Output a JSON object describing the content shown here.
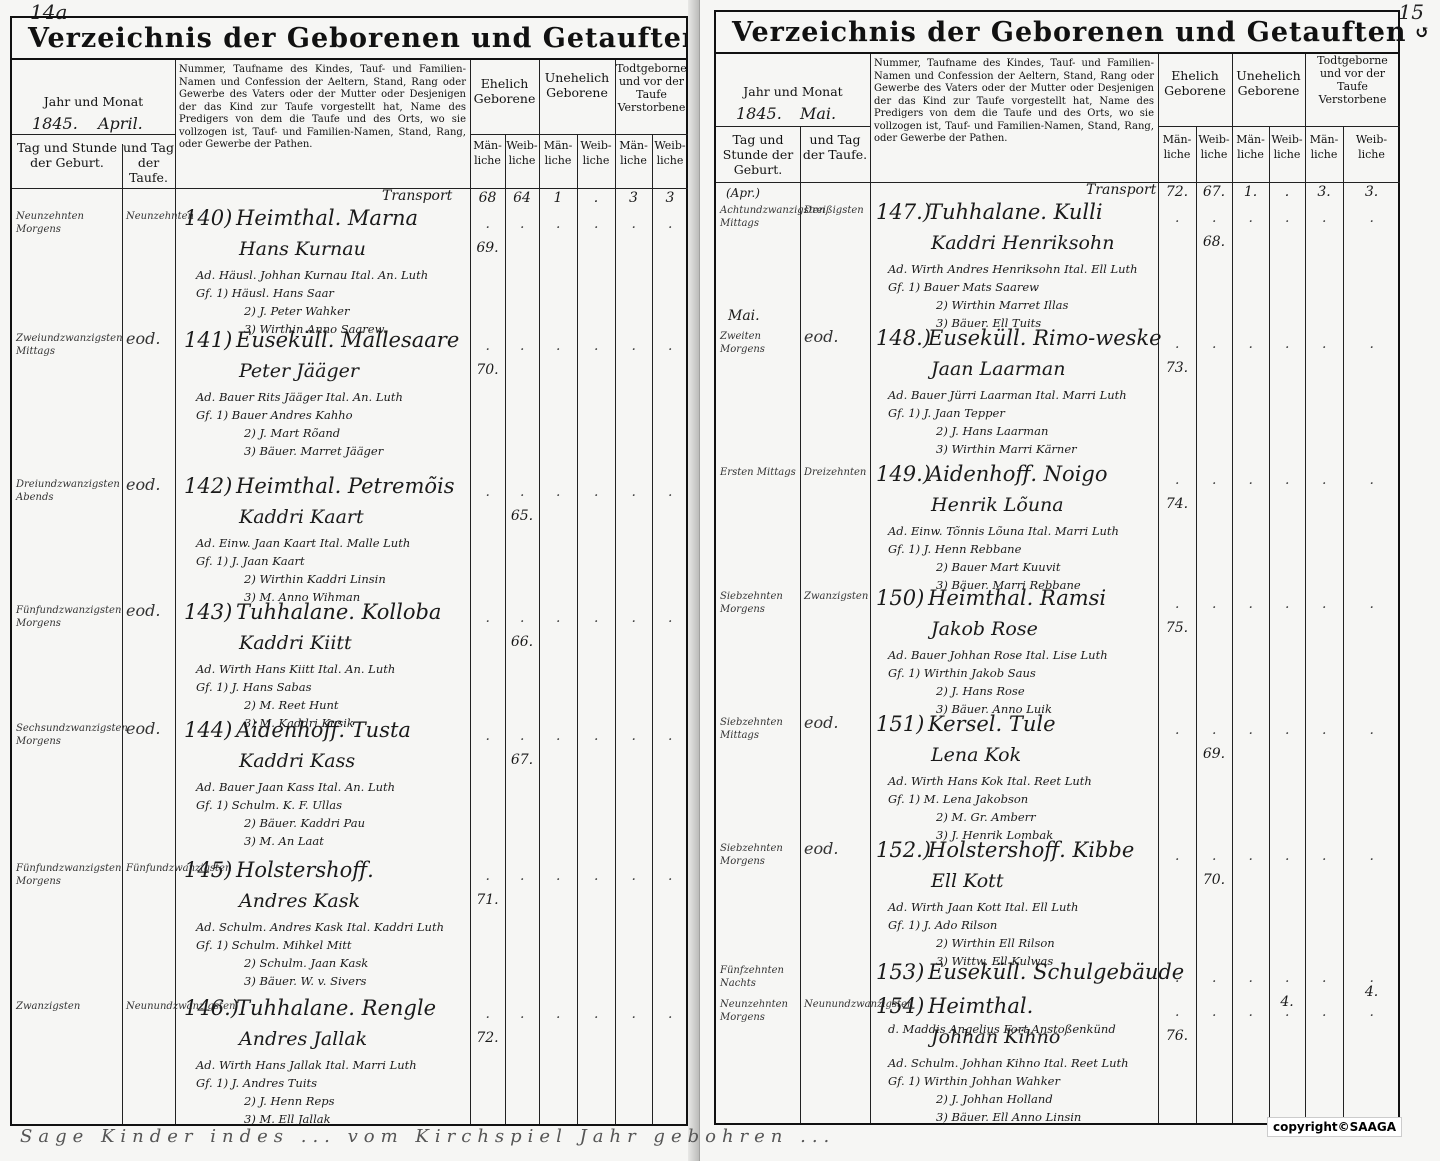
{
  "corner_left": "14a",
  "corner_right": "15",
  "left": {
    "title": "Verzeichnis der Geborenen und Getauften",
    "headers": {
      "year_month": "Jahr und Monat",
      "year_value": "1845.",
      "month_value": "April.",
      "birth_day": "Tag und Stunde der Geburt.",
      "baptism_day": "und Tag der Taufe.",
      "description": "Nummer, Taufname des Kindes, Tauf- und Familien-Namen und Confession der Aeltern, Stand, Rang oder Gewerbe des Vaters oder der Mutter oder Desjenigen der das Kind zur Taufe vorgestellt hat, Name des Predigers von dem die Taufe und des Orts, wo sie vollzogen ist, Tauf- und Familien-Namen, Stand, Rang, oder Gewerbe der Pathen.",
      "legit": "Ehelich Geborene",
      "illegit": "Unehelich Geborene",
      "stillborn": "Todtgeborne und vor der Taufe Verstorbene",
      "male": "Män- liche",
      "female": "Weib- liche"
    },
    "transport": "Transport",
    "transport_values": [
      "68",
      "64",
      "1",
      ".",
      "3",
      "3"
    ],
    "entries": [
      {
        "no": "140)",
        "place": "Heimthal. Marna",
        "child": "Hans Kurnau",
        "father": "Ad. Häusl. Johhan Kurnau Ital. An. Luth",
        "godparents": [
          "Gf. 1) Häusl. Hans Saar",
          "2) J. Peter Wahker",
          "3) Wirthin Anno Saarew."
        ],
        "birth": "Neunzehnten Morgens",
        "baptism": "Neunzehnten",
        "m": "69.",
        "f": "",
        "um": "",
        "uf": ""
      },
      {
        "no": "141)",
        "place": "Euseküll. Mallesaare",
        "child": "Peter Jääger",
        "father": "Ad. Bauer Rits Jääger Ital. An. Luth",
        "godparents": [
          "Gf. 1) Bauer Andres Kahho",
          "2) J. Mart Rõand",
          "3) Bäuer. Marret Jääger"
        ],
        "birth": "Zweiundzwanzigsten Mittags",
        "baptism": "eod.",
        "m": "70.",
        "f": "",
        "um": "",
        "uf": ""
      },
      {
        "no": "142)",
        "place": "Heimthal. Petremõis",
        "child": "Kaddri Kaart",
        "father": "Ad. Einw. Jaan Kaart Ital. Malle Luth",
        "godparents": [
          "Gf. 1) J. Jaan Kaart",
          "2) Wirthin Kaddri Linsin",
          "3) M. Anno Wihman"
        ],
        "birth": "Dreiundzwanzigsten Abends",
        "baptism": "eod.",
        "m": "",
        "f": "65.",
        "um": "",
        "uf": ""
      },
      {
        "no": "143)",
        "place": "Tuhhalane. Kolloba",
        "child": "Kaddri Kiitt",
        "father": "Ad. Wirth Hans Kiitt Ital. An. Luth",
        "godparents": [
          "Gf. 1) J. Hans Sabas",
          "2) M. Reet Hunt",
          "3) M. Kaddri Kusik"
        ],
        "birth": "Fünfundzwanzigsten Morgens",
        "baptism": "eod.",
        "m": "",
        "f": "66.",
        "um": "",
        "uf": ""
      },
      {
        "no": "144)",
        "place": "Aidenhoff. Tusta",
        "child": "Kaddri Kass",
        "father": "Ad. Bauer Jaan Kass Ital. An. Luth",
        "godparents": [
          "Gf. 1) Schulm. K. F. Ullas",
          "2) Bäuer. Kaddri Pau",
          "3) M. An Laat"
        ],
        "birth": "Sechsundzwanzigsten Morgens",
        "baptism": "eod.",
        "m": "",
        "f": "67.",
        "um": "",
        "uf": ""
      },
      {
        "no": "145)",
        "place": "Holstershoff.",
        "child": "Andres Kask",
        "father": "Ad. Schulm. Andres Kask Ital. Kaddri Luth",
        "godparents": [
          "Gf. 1) Schulm. Mihkel Mitt",
          "2) Schulm. Jaan Kask",
          "3) Bäuer. W. v. Sivers"
        ],
        "birth": "Fünfundzwanzigsten Morgens",
        "baptism": "Fünfundzwanzigsten",
        "m": "71.",
        "f": "",
        "um": "",
        "uf": ""
      },
      {
        "no": "146.)",
        "place": "Tuhhalane. Rengle",
        "child": "Andres Jallak",
        "father": "Ad. Wirth Hans Jallak Ital. Marri Luth",
        "godparents": [
          "Gf. 1) J. Andres Tuits",
          "2) J. Henn Reps",
          "3) M. Ell Jallak"
        ],
        "birth": "Zwanzigsten",
        "baptism": "Neunundzwanzigsten",
        "m": "72.",
        "f": "",
        "um": "",
        "uf": ""
      }
    ]
  },
  "right": {
    "title": "Verzeichnis der Geborenen und Getauften",
    "headers": {
      "year_month": "Jahr und Monat",
      "year_value": "1845.",
      "month_value": "Mai.",
      "birth_day": "Tag und Stunde der Geburt.",
      "baptism_day": "und Tag der Taufe.",
      "description": "Nummer, Taufname des Kindes, Tauf- und Familien-Namen und Confession der Aeltern, Stand, Rang oder Gewerbe des Vaters oder der Mutter oder Desjenigen der das Kind zur Taufe vorgestellt hat, Name des Predigers von dem die Taufe und des Orts, wo sie vollzogen ist, Tauf- und Familien-Namen, Stand, Rang, oder Gewerbe der Pathen.",
      "legit": "Ehelich Geborene",
      "illegit": "Unehelich Geborene",
      "stillborn": "Todtgeborne und vor der Taufe Verstorbene",
      "male": "Män- liche",
      "female": "Weib- liche"
    },
    "transport": "Transport",
    "transport_values": [
      "72.",
      "67.",
      "1.",
      ".",
      "3.",
      "3."
    ],
    "april_note": "(Apr.)",
    "may_note": "Mai.",
    "entries": [
      {
        "no": "147.)",
        "place": "Tuhhalane. Kulli",
        "child": "Kaddri Henriksohn",
        "father": "Ad. Wirth Andres Henriksohn Ital. Ell Luth",
        "godparents": [
          "Gf. 1) Bauer Mats Saarew",
          "2) Wirthin Marret Illas",
          "3) Bäuer. Ell Tuits"
        ],
        "birth": "Achtundzwanzigsten Mittags",
        "baptism": "Dreißigsten",
        "m": "",
        "f": "68.",
        "um": "",
        "uf": ""
      },
      {
        "no": "148.)",
        "place": "Euseküll. Rimo-weske",
        "child": "Jaan Laarman",
        "father": "Ad. Bauer Jürri Laarman Ital. Marri Luth",
        "godparents": [
          "Gf. 1) J. Jaan Tepper",
          "2) J. Hans Laarman",
          "3) Wirthin Marri Kärner"
        ],
        "birth": "Zweiten Morgens",
        "baptism": "eod.",
        "m": "73.",
        "f": "",
        "um": "",
        "uf": ""
      },
      {
        "no": "149.)",
        "place": "Aidenhoff. Noigo",
        "child": "Henrik Lõuna",
        "father": "Ad. Einw. Tõnnis Lõuna Ital. Marri Luth",
        "godparents": [
          "Gf. 1) J. Henn Rebbane",
          "2) Bauer Mart Kuuvit",
          "3) Bäuer. Marri Rebbane"
        ],
        "birth": "Ersten Mittags",
        "baptism": "Dreizehnten",
        "m": "74.",
        "f": "",
        "um": "",
        "uf": ""
      },
      {
        "no": "150)",
        "place": "Heimthal. Ramsi",
        "child": "Jakob Rose",
        "father": "Ad. Bauer Johhan Rose Ital. Lise Luth",
        "godparents": [
          "Gf. 1) Wirthin Jakob Saus",
          "2) J. Hans Rose",
          "3) Bäuer. Anno Luik"
        ],
        "birth": "Siebzehnten Morgens",
        "baptism": "Zwanzigsten",
        "m": "75.",
        "f": "",
        "um": "",
        "uf": ""
      },
      {
        "no": "151)",
        "place": "Kersel. Tule",
        "child": "Lena Kok",
        "father": "Ad. Wirth Hans Kok Ital. Reet Luth",
        "godparents": [
          "Gf. 1) M. Lena Jakobson",
          "2) M. Gr. Amberr",
          "3) J. Henrik Lombak"
        ],
        "birth": "Siebzehnten Mittags",
        "baptism": "eod.",
        "m": "",
        "f": "69.",
        "um": "",
        "uf": ""
      },
      {
        "no": "152.)",
        "place": "Holstershoff. Kibbe",
        "child": "Ell Kott",
        "father": "Ad. Wirth Jaan Kott Ital. Ell Luth",
        "godparents": [
          "Gf. 1) J. Ado Rilson",
          "2) Wirthin Ell Rilson",
          "3) Wittw. Ell Kulwas"
        ],
        "birth": "Siebzehnten Morgens",
        "baptism": "eod.",
        "m": "",
        "f": "70.",
        "um": "",
        "uf": ""
      },
      {
        "no": "153)",
        "place": "Euseküll. Schulgebäude",
        "child": "",
        "father": "d. Maddis Angelius Fort Anstoßenkünd",
        "godparents": [],
        "birth": "Fünfzehnten Nachts",
        "baptism": "",
        "m": "",
        "f": "",
        "um": "",
        "uf": "4."
      },
      {
        "no": "154)",
        "place": "Heimthal.",
        "child": "Johhan Kihno",
        "father": "Ad. Schulm. Johhan Kihno Ital. Reet Luth",
        "godparents": [
          "Gf. 1) Wirthin Johhan Wahker",
          "2) J. Johhan Holland",
          "3) Bäuer. Ell Anno Linsin"
        ],
        "birth": "Neunzehnten Morgens",
        "baptism": "Neunundzwanzigsten",
        "m": "76.",
        "f": "",
        "um": "",
        "uf": ""
      }
    ]
  },
  "bottom_note": "Sage Kinder indes ... vom Kirchspiel Jahr gebohren ...",
  "copyright": "copyright©SAAGA"
}
